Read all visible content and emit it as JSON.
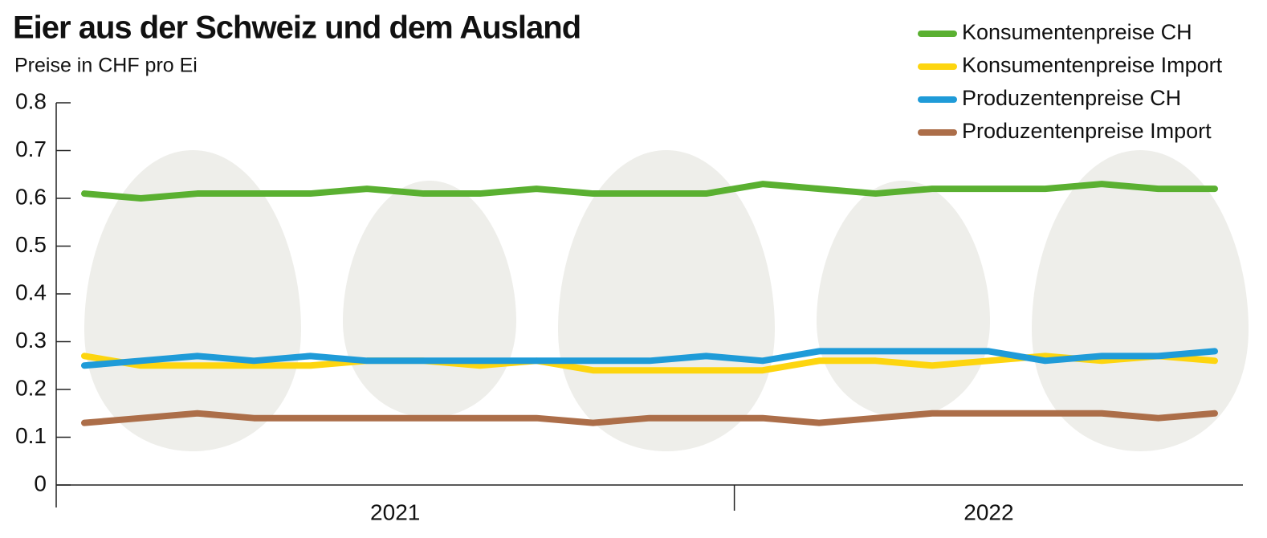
{
  "chart_data": {
    "type": "line",
    "title": "Eier aus der Schweiz und dem Ausland",
    "subtitle": "Preise in CHF pro Ei",
    "categories": [
      "2021",
      "2021",
      "2021",
      "2021",
      "2021",
      "2021",
      "2021",
      "2021",
      "2021",
      "2021",
      "2021",
      "2021",
      "2022",
      "2022",
      "2022",
      "2022",
      "2022",
      "2022",
      "2022",
      "2022",
      "2022"
    ],
    "ylim": [
      0,
      0.8
    ],
    "yticks": [
      0,
      0.1,
      0.2,
      0.3,
      0.4,
      0.5,
      0.6,
      0.7,
      0.8
    ],
    "legend": "top-right",
    "series": [
      {
        "name": "Konsumentenpreise CH",
        "color": "#5ab031",
        "values": [
          0.61,
          0.6,
          0.61,
          0.61,
          0.61,
          0.62,
          0.61,
          0.61,
          0.62,
          0.61,
          0.61,
          0.61,
          0.63,
          0.62,
          0.61,
          0.62,
          0.62,
          0.62,
          0.63,
          0.62,
          0.62
        ]
      },
      {
        "name": "Konsumentenpreise Import",
        "color": "#fdd50f",
        "values": [
          0.27,
          0.25,
          0.25,
          0.25,
          0.25,
          0.26,
          0.26,
          0.25,
          0.26,
          0.24,
          0.24,
          0.24,
          0.24,
          0.26,
          0.26,
          0.25,
          0.26,
          0.27,
          0.26,
          0.27,
          0.26
        ]
      },
      {
        "name": "Produzentenpreise CH",
        "color": "#1f9bd8",
        "values": [
          0.25,
          0.26,
          0.27,
          0.26,
          0.27,
          0.26,
          0.26,
          0.26,
          0.26,
          0.26,
          0.26,
          0.27,
          0.26,
          0.28,
          0.28,
          0.28,
          0.28,
          0.26,
          0.27,
          0.27,
          0.28
        ]
      },
      {
        "name": "Produzentenpreise Import",
        "color": "#ac6e49",
        "values": [
          0.13,
          0.14,
          0.15,
          0.14,
          0.14,
          0.14,
          0.14,
          0.14,
          0.14,
          0.13,
          0.14,
          0.14,
          0.14,
          0.13,
          0.14,
          0.15,
          0.15,
          0.15,
          0.15,
          0.14,
          0.15
        ]
      }
    ]
  }
}
